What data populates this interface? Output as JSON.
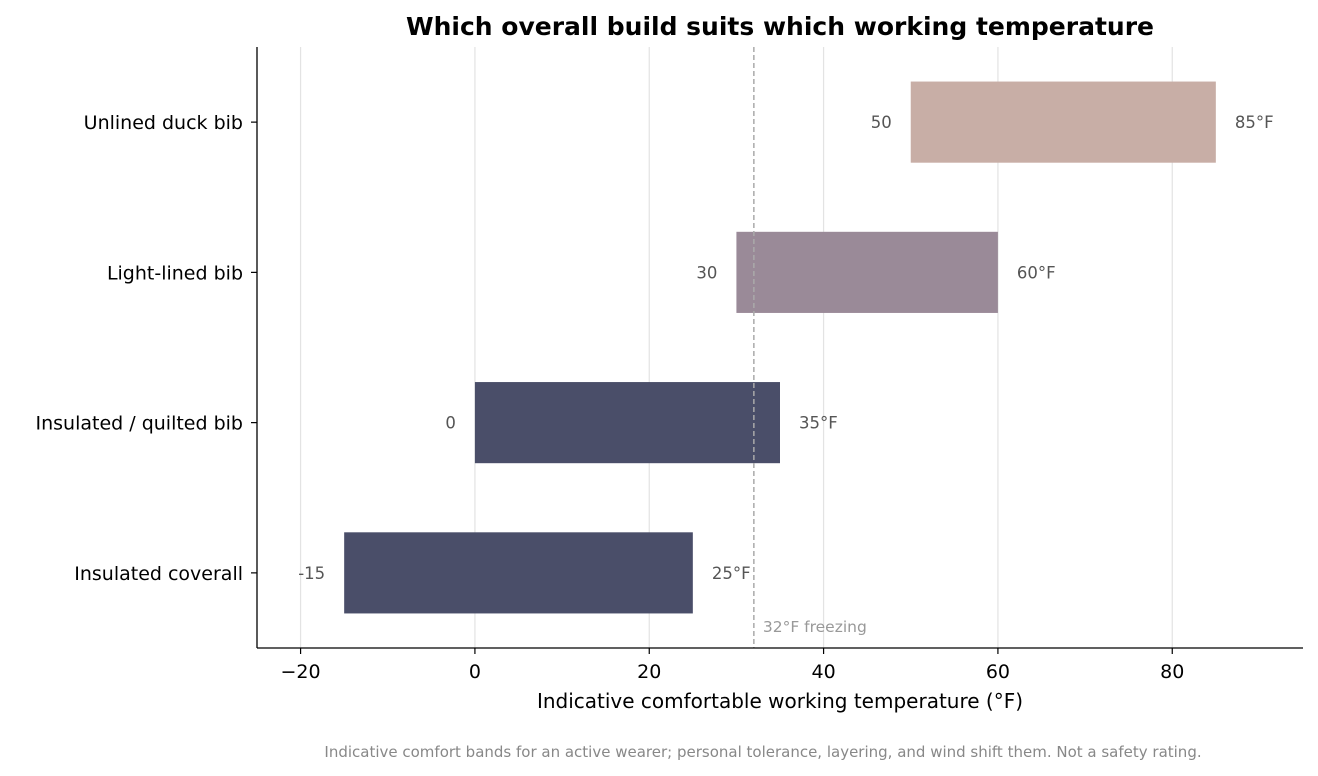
{
  "chart_data": {
    "type": "bar",
    "orientation": "horizontal-range",
    "title": "Which overall build suits which working temperature",
    "xlabel": "Indicative comfortable working temperature (°F)",
    "xlim": [
      -25,
      95
    ],
    "xticks": [
      -20,
      0,
      20,
      40,
      60,
      80
    ],
    "xtick_labels": [
      "−20",
      "0",
      "20",
      "40",
      "60",
      "80"
    ],
    "grid": "vertical",
    "categories": [
      "Unlined duck bib",
      "Light-lined bib",
      "Insulated / quilted bib",
      "Insulated coverall"
    ],
    "ranges": [
      {
        "low": 50,
        "high": 85,
        "low_label": "50",
        "high_label": "85°F",
        "color": "#c8aea6"
      },
      {
        "low": 30,
        "high": 60,
        "low_label": "30",
        "high_label": "60°F",
        "color": "#9a8a98"
      },
      {
        "low": 0,
        "high": 35,
        "low_label": "0",
        "high_label": "35°F",
        "color": "#4a4e69"
      },
      {
        "low": -15,
        "high": 25,
        "low_label": "-15",
        "high_label": "25°F",
        "color": "#4a4e69"
      }
    ],
    "reference_line": {
      "x": 32,
      "label": "32°F freezing",
      "color": "#aaaaaa"
    }
  },
  "footnote": "Indicative comfort bands for an active wearer; personal tolerance, layering, and wind shift them. Not a safety rating."
}
